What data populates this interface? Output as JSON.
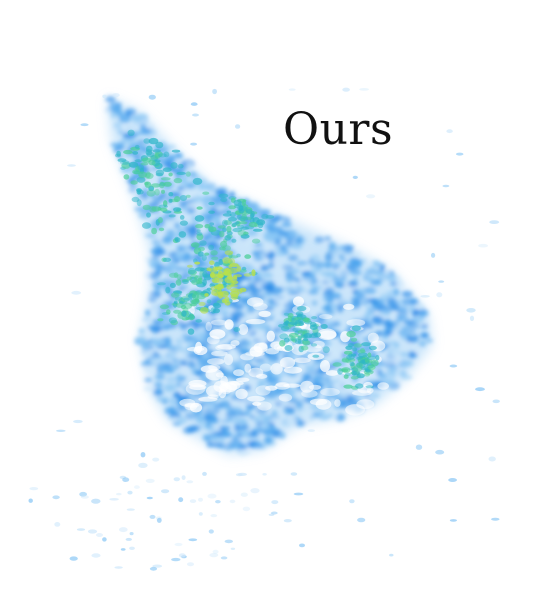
{
  "caption": "Ours",
  "visualization": {
    "kind": "point-cloud-density",
    "background": "#ffffff",
    "palette": [
      "#cfe8fb",
      "#8cc8f5",
      "#4fa6ee",
      "#2f8ee8",
      "#2fb6c8",
      "#4ccf9a",
      "#b9e04a"
    ]
  }
}
